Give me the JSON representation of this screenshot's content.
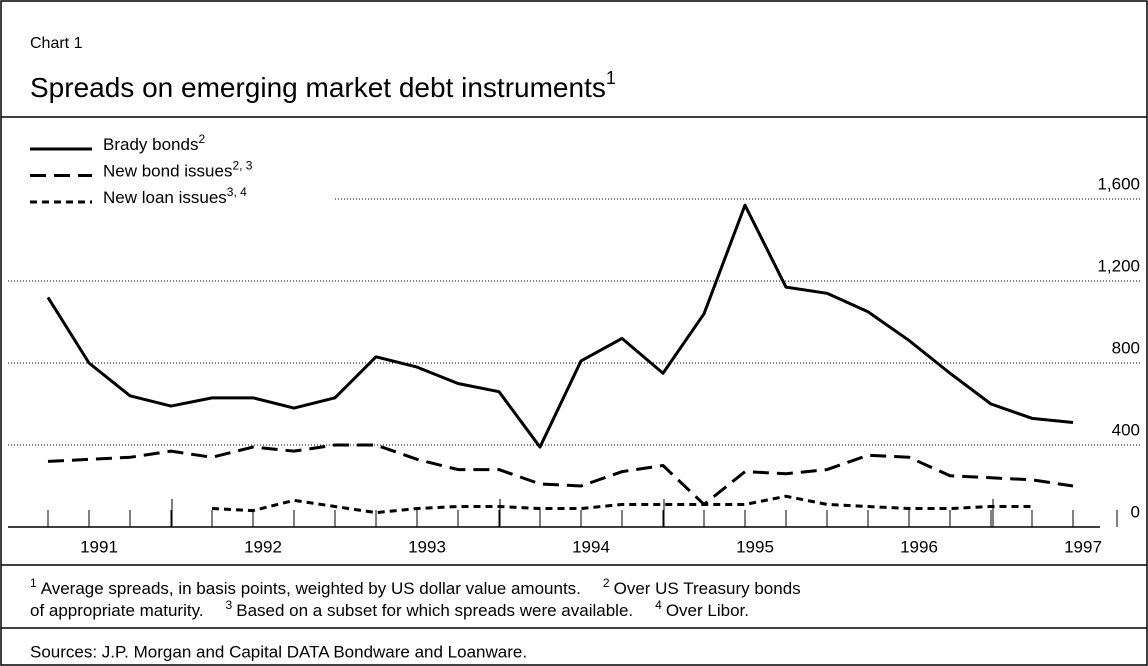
{
  "chart_data": {
    "type": "line",
    "label": "Chart 1",
    "title": "Spreads on emerging market debt instruments",
    "title_note": "1",
    "categories": [
      null,
      "1991",
      null,
      null,
      null,
      "1992",
      null,
      null,
      null,
      "1993",
      null,
      null,
      null,
      "1994",
      null,
      null,
      null,
      "1995",
      null,
      null,
      null,
      "1996",
      null,
      null,
      null,
      "1997"
    ],
    "series": [
      {
        "name": "Brady bonds",
        "name_note": "2",
        "color": "#000000",
        "style": "solid",
        "values": [
          1120,
          800,
          640,
          590,
          630,
          630,
          580,
          630,
          830,
          780,
          700,
          660,
          390,
          810,
          920,
          750,
          1040,
          1570,
          1170,
          1140,
          1050,
          910,
          750,
          600,
          530,
          510
        ]
      },
      {
        "name": "New bond issues",
        "name_note": "2, 3",
        "color": "#000000",
        "style": "dashed",
        "values": [
          320,
          330,
          340,
          370,
          340,
          390,
          370,
          400,
          400,
          330,
          280,
          280,
          210,
          200,
          270,
          300,
          110,
          270,
          260,
          280,
          350,
          340,
          250,
          240,
          230,
          200
        ]
      },
      {
        "name": "New loan issues",
        "name_note": "3, 4",
        "color": "#000000",
        "style": "short-dashed",
        "values": [
          null,
          null,
          null,
          null,
          90,
          80,
          130,
          100,
          70,
          90,
          100,
          100,
          90,
          90,
          110,
          110,
          110,
          110,
          150,
          110,
          100,
          90,
          90,
          100,
          100,
          null
        ]
      }
    ],
    "ylim": [
      0,
      2000
    ],
    "yticks": [
      0,
      400,
      800,
      {
        "value": 1200,
        "label": "1,200"
      },
      {
        "value": 1600,
        "label": "1,600"
      }
    ],
    "grid": true,
    "legend": "top-left",
    "footnotes": [
      [
        {
          "sup": "1",
          "text": "Average spreads, in basis points, weighted by US dollar value amounts."
        },
        {
          "sup": "2",
          "text": "Over US Treasury bonds"
        }
      ],
      [
        {
          "text": "of appropriate maturity."
        },
        {
          "sup": "3",
          "text": "Based on a subset for which spreads were available."
        },
        {
          "sup": "4",
          "text": "Over Libor."
        }
      ]
    ],
    "sources": "Sources: J.P. Morgan and Capital DATA Bondware and Loanware."
  }
}
